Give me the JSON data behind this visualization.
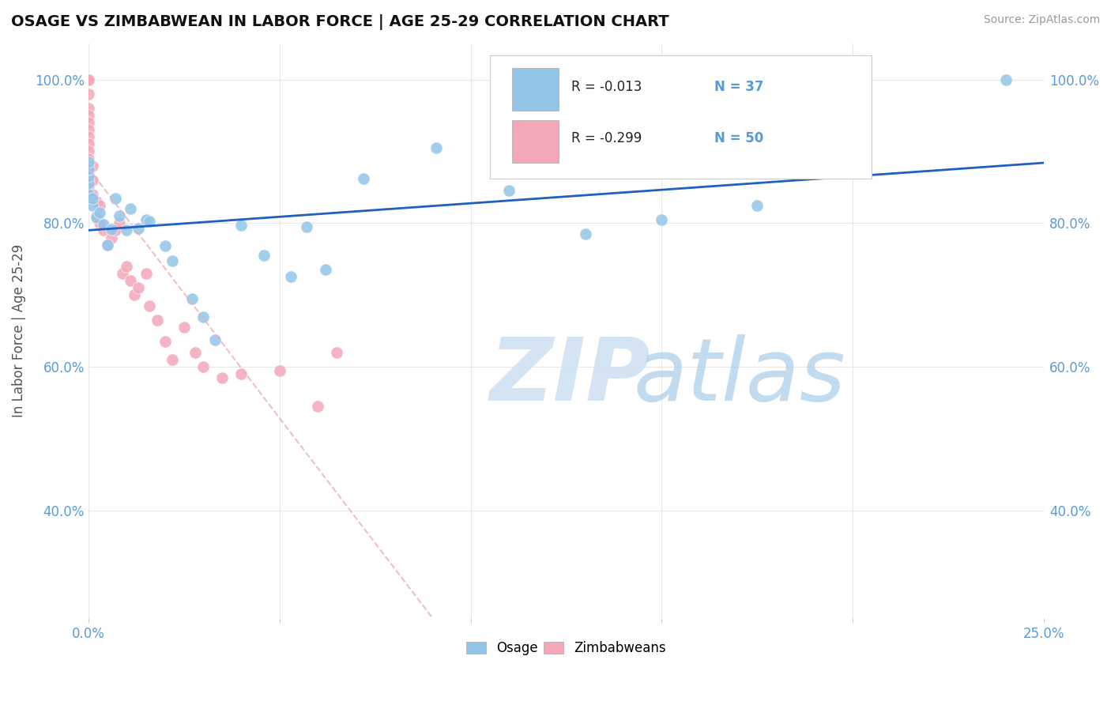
{
  "title": "OSAGE VS ZIMBABWEAN IN LABOR FORCE | AGE 25-29 CORRELATION CHART",
  "source_text": "Source: ZipAtlas.com",
  "ylabel": "In Labor Force | Age 25-29",
  "xmin": 0.0,
  "xmax": 0.25,
  "ymin": 0.25,
  "ymax": 1.05,
  "osage_R": -0.013,
  "osage_N": 37,
  "zimbabwean_R": -0.299,
  "zimbabwean_N": 50,
  "osage_color": "#92c5e8",
  "zimbabwean_color": "#f4a7b9",
  "trend_osage_color": "#2060c0",
  "trend_zimbabwean_color": "#e0b0b8",
  "osage_x": [
    0.0,
    0.0,
    0.0,
    0.0,
    0.0,
    0.001,
    0.001,
    0.002,
    0.003,
    0.004,
    0.005,
    0.006,
    0.007,
    0.008,
    0.01,
    0.011,
    0.013,
    0.015,
    0.016,
    0.02,
    0.022,
    0.027,
    0.03,
    0.033,
    0.04,
    0.046,
    0.053,
    0.057,
    0.062,
    0.072,
    0.091,
    0.11,
    0.13,
    0.15,
    0.175,
    0.185,
    0.24
  ],
  "osage_y": [
    0.84,
    0.855,
    0.865,
    0.875,
    0.885,
    0.825,
    0.835,
    0.808,
    0.815,
    0.798,
    0.77,
    0.792,
    0.835,
    0.81,
    0.79,
    0.82,
    0.793,
    0.805,
    0.803,
    0.768,
    0.748,
    0.695,
    0.67,
    0.638,
    0.797,
    0.755,
    0.726,
    0.795,
    0.735,
    0.862,
    0.905,
    0.845,
    0.785,
    0.805,
    0.825,
    0.88,
    1.0
  ],
  "zimbabwean_x": [
    0.0,
    0.0,
    0.0,
    0.0,
    0.0,
    0.0,
    0.0,
    0.0,
    0.0,
    0.0,
    0.0,
    0.0,
    0.0,
    0.0,
    0.0,
    0.0,
    0.0,
    0.0,
    0.0,
    0.0,
    0.001,
    0.001,
    0.001,
    0.002,
    0.002,
    0.003,
    0.003,
    0.004,
    0.005,
    0.006,
    0.007,
    0.008,
    0.009,
    0.01,
    0.011,
    0.012,
    0.013,
    0.015,
    0.016,
    0.018,
    0.02,
    0.022,
    0.025,
    0.028,
    0.03,
    0.035,
    0.04,
    0.05,
    0.06,
    0.065
  ],
  "zimbabwean_y": [
    1.0,
    1.0,
    1.0,
    1.0,
    1.0,
    1.0,
    0.98,
    0.96,
    0.95,
    0.94,
    0.93,
    0.92,
    0.91,
    0.9,
    0.89,
    0.88,
    0.87,
    0.86,
    0.85,
    0.84,
    0.88,
    0.86,
    0.84,
    0.81,
    0.83,
    0.8,
    0.825,
    0.79,
    0.77,
    0.78,
    0.79,
    0.8,
    0.73,
    0.74,
    0.72,
    0.7,
    0.71,
    0.73,
    0.685,
    0.665,
    0.635,
    0.61,
    0.655,
    0.62,
    0.6,
    0.585,
    0.59,
    0.595,
    0.545,
    0.62
  ],
  "yticks": [
    0.4,
    0.6,
    0.8,
    1.0
  ],
  "ytick_labels": [
    "40.0%",
    "60.0%",
    "80.0%",
    "100.0%"
  ],
  "xticks": [
    0.0,
    0.05,
    0.1,
    0.15,
    0.2,
    0.25
  ],
  "xtick_labels": [
    "0.0%",
    "",
    "",
    "",
    "",
    "25.0%"
  ]
}
